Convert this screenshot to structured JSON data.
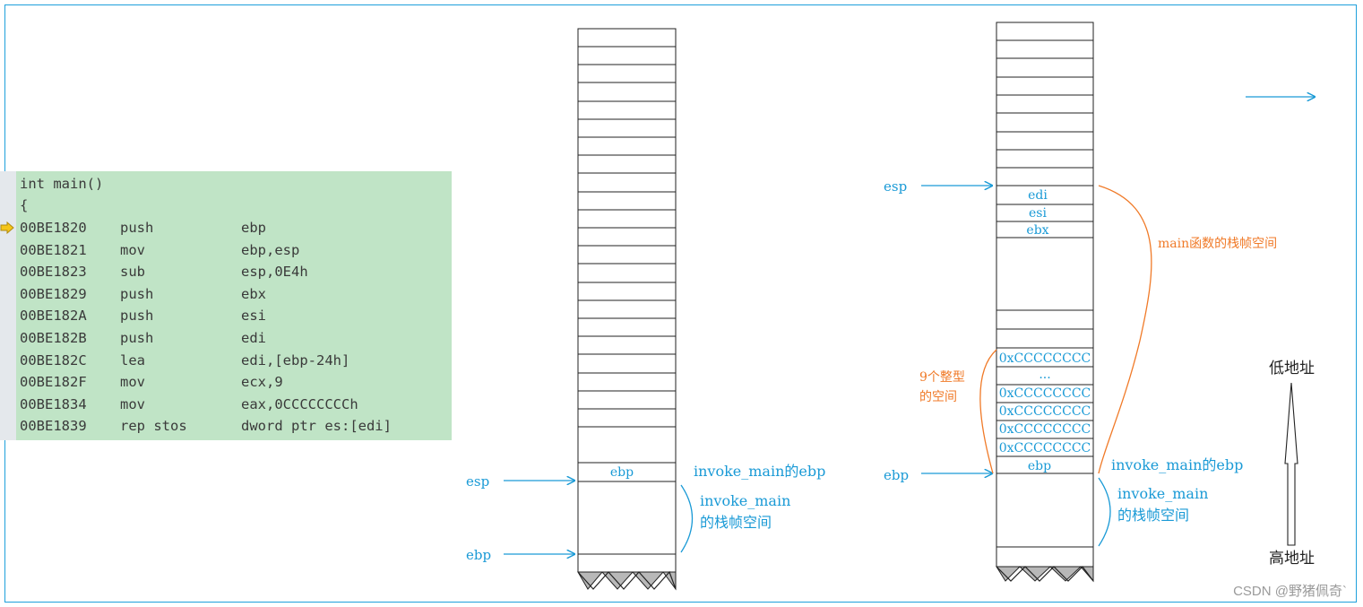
{
  "code": {
    "header": [
      "int main()",
      "{"
    ],
    "lines": [
      {
        "addr": "00BE1820",
        "op": "push",
        "args": "ebp"
      },
      {
        "addr": "00BE1821",
        "op": "mov",
        "args": "ebp,esp"
      },
      {
        "addr": "00BE1823",
        "op": "sub",
        "args": "esp,0E4h"
      },
      {
        "addr": "00BE1829",
        "op": "push",
        "args": "ebx"
      },
      {
        "addr": "00BE182A",
        "op": "push",
        "args": "esi"
      },
      {
        "addr": "00BE182B",
        "op": "push",
        "args": "edi"
      },
      {
        "addr": "00BE182C",
        "op": "lea",
        "args": "edi,[ebp-24h]"
      },
      {
        "addr": "00BE182F",
        "op": "mov",
        "args": "ecx,9"
      },
      {
        "addr": "00BE1834",
        "op": "mov",
        "args": "eax,0CCCCCCCCh"
      },
      {
        "addr": "00BE1839",
        "op": "rep stos",
        "args": "dword ptr es:[edi]"
      }
    ]
  },
  "stack1": {
    "esp_label": "esp",
    "ebp_label": "ebp",
    "ebp_cell": "ebp",
    "saved_ebp_note": "invoke_main的ebp",
    "frame_note_line1": "invoke_main",
    "frame_note_line2": "的栈帧空间"
  },
  "stack2": {
    "esp_label": "esp",
    "ebp_label": "ebp",
    "cells": {
      "edi": "edi",
      "esi": "esi",
      "ebx": "ebx",
      "cc": "0xCCCCCCCC",
      "dots": "...",
      "ebp": "ebp"
    },
    "main_frame_note": "main函数的栈帧空间",
    "ints_note_line1": "9个整型",
    "ints_note_line2": "的空间",
    "saved_ebp_note": "invoke_main的ebp",
    "frame_note_line1": "invoke_main",
    "frame_note_line2": "的栈帧空间"
  },
  "address_axis": {
    "low": "低地址",
    "high": "高地址"
  },
  "watermark": "CSDN @野猪佩奇`",
  "colors": {
    "accent_blue": "#1a9ad6",
    "orange": "#f07a28",
    "code_bg": "#c0e4c6",
    "marker_yellow": "#f5c518"
  }
}
